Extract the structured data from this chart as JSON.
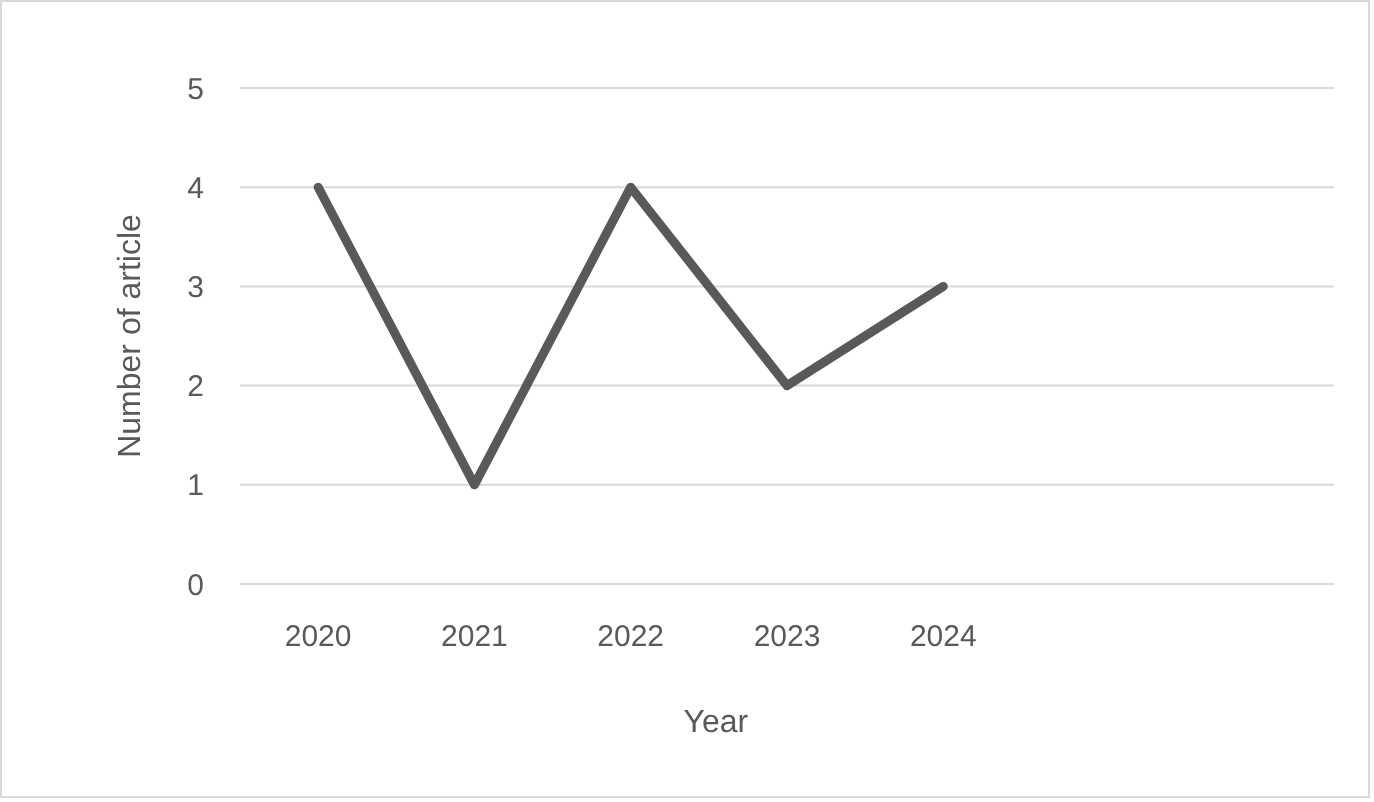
{
  "chart_data": {
    "type": "line",
    "xlabel": "Year",
    "ylabel": "Number of article",
    "categories": [
      "2020",
      "2021",
      "2022",
      "2023",
      "2024",
      null,
      null
    ],
    "series": [
      {
        "color": "#595959",
        "values": [
          4,
          1,
          4,
          2,
          3,
          null,
          null
        ]
      }
    ],
    "ylim": [
      0,
      5
    ],
    "yticks": [
      0,
      1,
      2,
      3,
      4,
      5
    ],
    "grid": "y",
    "marker": "none",
    "line_style": "solid"
  }
}
